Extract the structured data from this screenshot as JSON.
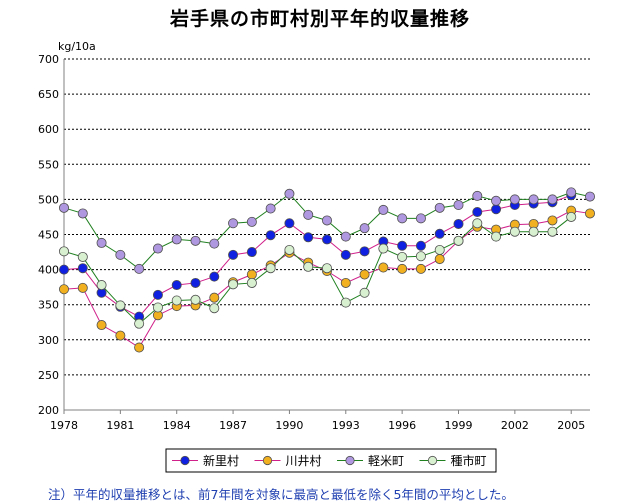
{
  "title": "岩手県の市町村別平年的収量推移",
  "note": "注）平年的収量推移とは、前7年間を対象に最高と最低を除く5年間の平均とした。",
  "chart_data": {
    "type": "line",
    "title": "岩手県の市町村別平年的収量推移",
    "ylabel": "kg/10a",
    "xlabel": "",
    "ylim": [
      200,
      700
    ],
    "yticks": [
      200,
      250,
      300,
      350,
      400,
      450,
      500,
      550,
      600,
      650,
      700
    ],
    "xticks": [
      1978,
      1981,
      1984,
      1987,
      1990,
      1993,
      1996,
      1999,
      2002,
      2005
    ],
    "x": [
      1978,
      1979,
      1980,
      1981,
      1982,
      1983,
      1984,
      1985,
      1986,
      1987,
      1988,
      1989,
      1990,
      1991,
      1992,
      1993,
      1994,
      1995,
      1996,
      1997,
      1998,
      1999,
      2000,
      2001,
      2002,
      2003,
      2004,
      2005,
      2006
    ],
    "grid": true,
    "legend_position": "bottom",
    "series": [
      {
        "name": "新里村",
        "line_color": "#d0208a",
        "marker_color": "#1020e0",
        "values": [
          400,
          402,
          367,
          347,
          333,
          364,
          378,
          381,
          390,
          421,
          425,
          449,
          466,
          446,
          443,
          421,
          426,
          440,
          434,
          434,
          451,
          465,
          482,
          486,
          492,
          494,
          496,
          506,
          null
        ]
      },
      {
        "name": "川井村",
        "line_color": "#d0208a",
        "marker_color": "#f0b020",
        "values": [
          372,
          374,
          321,
          306,
          289,
          335,
          348,
          349,
          360,
          382,
          393,
          406,
          424,
          410,
          398,
          381,
          393,
          403,
          401,
          401,
          415,
          441,
          461,
          457,
          464,
          465,
          470,
          484,
          480
        ]
      },
      {
        "name": "軽米町",
        "line_color": "#208020",
        "marker_color": "#b098e0",
        "values": [
          488,
          480,
          438,
          421,
          401,
          430,
          443,
          441,
          437,
          466,
          468,
          487,
          508,
          478,
          470,
          447,
          459,
          485,
          473,
          473,
          488,
          492,
          505,
          498,
          500,
          500,
          500,
          510,
          504
        ]
      },
      {
        "name": "種市町",
        "line_color": "#208020",
        "marker_color": "#d8f0d0",
        "values": [
          426,
          418,
          378,
          349,
          323,
          346,
          356,
          357,
          345,
          379,
          381,
          402,
          428,
          404,
          402,
          353,
          367,
          430,
          418,
          419,
          428,
          441,
          466,
          447,
          454,
          454,
          454,
          475,
          null
        ]
      }
    ]
  }
}
